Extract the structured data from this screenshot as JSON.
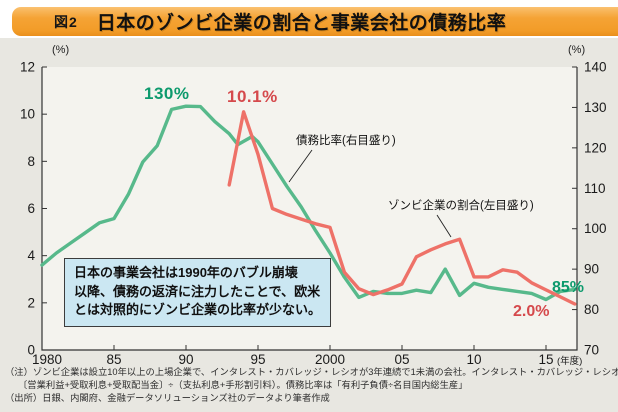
{
  "header": {
    "figure_label": "図2",
    "title": "日本のゾンビ企業の割合と事業会社の債務比率"
  },
  "chart_data": {
    "type": "line",
    "title": "日本のゾンビ企業の割合と事業会社の債務比率",
    "grid": false,
    "x_axis": {
      "unit": "(年度)",
      "tick_years": [
        1980,
        1985,
        1990,
        1995,
        2000,
        2005,
        2010,
        2015
      ],
      "tick_labels": [
        "1980",
        "85",
        "90",
        "95",
        "2000",
        "05",
        "10",
        "15"
      ],
      "range": [
        1980,
        2017.2
      ]
    },
    "y_left": {
      "unit": "(%)",
      "ticks": [
        0,
        2,
        4,
        6,
        8,
        10,
        12
      ],
      "range": [
        0,
        12
      ]
    },
    "y_right": {
      "unit": "(%)",
      "ticks": [
        70,
        80,
        90,
        100,
        110,
        120,
        130,
        140
      ],
      "range": [
        70,
        140
      ]
    },
    "series": [
      {
        "name": "債務比率(右目盛り)",
        "axis": "right",
        "color": "#57b98b",
        "x": [
          1980,
          1981,
          1982,
          1983,
          1984,
          1985,
          1986,
          1987,
          1988,
          1989,
          1990,
          1991,
          1992,
          1993,
          1993.6,
          1994.6,
          1995,
          1996,
          1997,
          1998,
          1999,
          2000,
          2001,
          2002,
          2003,
          2004,
          2005,
          2006,
          2007,
          2008,
          2009,
          2010,
          2011,
          2012,
          2013,
          2014,
          2015,
          2016,
          2017
        ],
        "values": [
          91,
          94,
          96.5,
          99,
          101.5,
          102.5,
          108.5,
          116.5,
          120.5,
          129.5,
          130.3,
          130.2,
          126.5,
          123.5,
          120.8,
          122.8,
          121.5,
          116,
          110.5,
          105.4,
          99.5,
          94,
          88,
          83,
          84.5,
          84,
          84,
          84.8,
          84.2,
          90,
          83.5,
          86.5,
          85.5,
          85,
          84.5,
          84,
          82.5,
          84.5,
          85
        ]
      },
      {
        "name": "ゾンビ企業の割合(左目盛り)",
        "axis": "left",
        "color": "#ee7168",
        "x": [
          1993,
          1994,
          1995,
          1996,
          1997,
          1998,
          1999,
          2000,
          2001,
          2002,
          2003,
          2004,
          2005,
          2006,
          2007,
          2008,
          2009,
          2010,
          2011,
          2012,
          2013,
          2014,
          2015,
          2016,
          2017
        ],
        "values": [
          7.0,
          10.1,
          8.3,
          6.0,
          5.75,
          5.55,
          5.35,
          5.2,
          3.3,
          2.6,
          2.35,
          2.55,
          2.8,
          3.95,
          4.25,
          4.5,
          4.7,
          3.1,
          3.1,
          3.4,
          3.3,
          2.85,
          2.55,
          2.25,
          1.95
        ]
      }
    ],
    "annotations": {
      "debt_peak": "130%",
      "zombie_peak": "10.1%",
      "debt_final": "85%",
      "zombie_final": "2.0%"
    }
  },
  "comment_box": {
    "lines": [
      "日本の事業会社は1990年のバブル崩壊",
      "以降、債務の返済に注力したことで、欧米",
      "とは対照的にゾンビ企業の比率が少ない。"
    ]
  },
  "footnotes": {
    "note1": "（注）ゾンビ企業は設立10年以上の上場企業で、インタレスト・カバレッジ・レシオが3年連続で1未満の会社。インタレスト・カバレッジ・レシオは",
    "note2": "〔営業利益+受取利息+受取配当金〕÷（支払利息+手形割引料）。債務比率は「有利子負債÷名目国内総生産」",
    "source": "（出所）日銀、内閣府、金融データソリューションズ社のデータより筆者作成"
  },
  "colors": {
    "banner_orange": "#f5a335",
    "debt_line": "#57b98b",
    "zombie_line": "#ee7168",
    "debt_text": "#0d9a6d",
    "zombie_text": "#d5494c",
    "comment_box_bg": "#cbe7f2",
    "panel_bg": "#e8e7e1",
    "plot_bg": "#f4f3ee"
  }
}
